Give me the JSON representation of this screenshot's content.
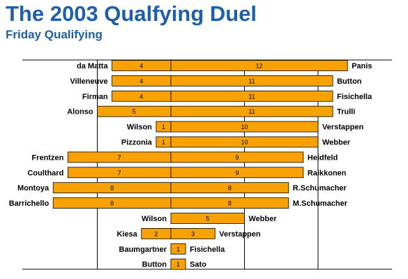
{
  "title": "The 2003 Qualfying Duel",
  "subtitle": "Friday Qualifying",
  "chart_data": {
    "type": "bar",
    "orientation": "horizontal-diverging",
    "title": "The 2003 Qualfying Duel",
    "subtitle": "Friday Qualifying",
    "xlabel": "",
    "ylabel": "",
    "grid": true,
    "xlim": [
      -10,
      15
    ],
    "colors": {
      "bar": "#f7a202",
      "title": "#1f5fa8"
    },
    "pairs": [
      {
        "left_driver": "da Matta",
        "left_value": 4,
        "right_driver": "Panis",
        "right_value": 12
      },
      {
        "left_driver": "Villeneuve",
        "left_value": 4,
        "right_driver": "Button",
        "right_value": 11
      },
      {
        "left_driver": "Firman",
        "left_value": 4,
        "right_driver": "Fisichella",
        "right_value": 11
      },
      {
        "left_driver": "Alonso",
        "left_value": 5,
        "right_driver": "Trulli",
        "right_value": 11
      },
      {
        "left_driver": "Wilson",
        "left_value": 1,
        "right_driver": "Verstappen",
        "right_value": 10
      },
      {
        "left_driver": "Pizzonia",
        "left_value": 1,
        "right_driver": "Webber",
        "right_value": 10
      },
      {
        "left_driver": "Frentzen",
        "left_value": 7,
        "right_driver": "Heidfeld",
        "right_value": 9
      },
      {
        "left_driver": "Coulthard",
        "left_value": 7,
        "right_driver": "Raikkonen",
        "right_value": 9
      },
      {
        "left_driver": "Montoya",
        "left_value": 8,
        "right_driver": "R.Schumacher",
        "right_value": 8
      },
      {
        "left_driver": "Barrichello",
        "left_value": 8,
        "right_driver": "M.Schumacher",
        "right_value": 8
      },
      {
        "left_driver": "Wilson",
        "left_value": 0,
        "right_driver": "Webber",
        "right_value": 5
      },
      {
        "left_driver": "Kiesa",
        "left_value": 2,
        "right_driver": "Verstappen",
        "right_value": 3
      },
      {
        "left_driver": "Baumgartner",
        "left_value": 0,
        "right_driver": "Fisichella",
        "right_value": 1
      },
      {
        "left_driver": "Button",
        "left_value": 0,
        "right_driver": "Sato",
        "right_value": 1
      }
    ]
  }
}
